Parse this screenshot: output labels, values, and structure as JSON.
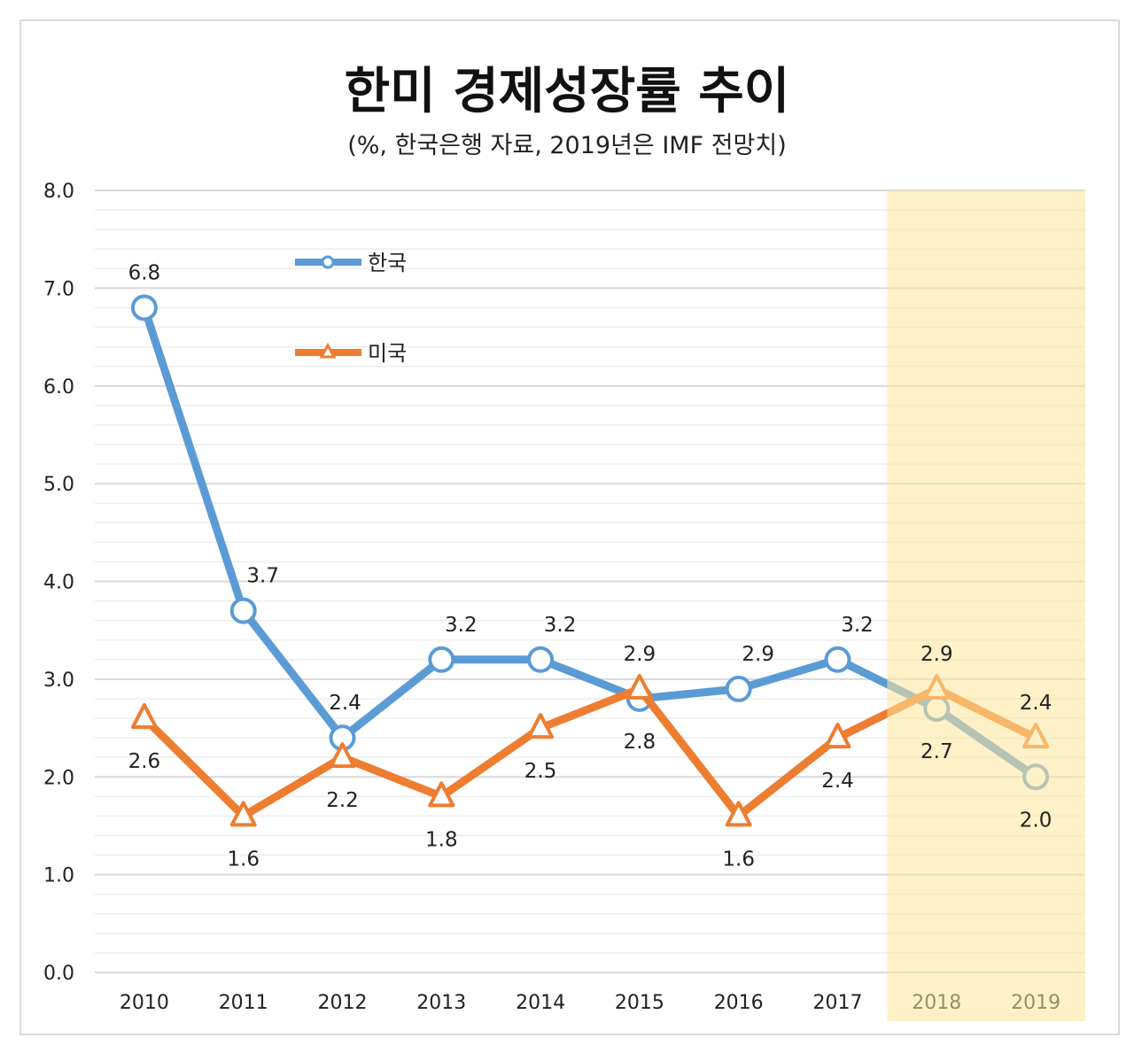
{
  "chart_data": {
    "type": "line",
    "title": "한미 경제성장률 추이",
    "subtitle": "(%, 한국은행 자료, 2019년은 IMF 전망치)",
    "categories": [
      "2010",
      "2011",
      "2012",
      "2013",
      "2014",
      "2015",
      "2016",
      "2017",
      "2018",
      "2019"
    ],
    "ylim": [
      0,
      8
    ],
    "yticks": [
      "0.0",
      "1.0",
      "2.0",
      "3.0",
      "4.0",
      "5.0",
      "6.0",
      "7.0",
      "8.0"
    ],
    "grid": true,
    "legend_position": "top-left",
    "highlight_categories": [
      "2018",
      "2019"
    ],
    "series": [
      {
        "name": "한국",
        "color": "#5b9bd5",
        "marker": "circle",
        "values": [
          6.8,
          3.7,
          2.4,
          3.2,
          3.2,
          2.8,
          2.9,
          3.2,
          2.7,
          2.0
        ]
      },
      {
        "name": "미국",
        "color": "#ed7d31",
        "marker": "triangle",
        "values": [
          2.6,
          1.6,
          2.2,
          1.8,
          2.5,
          2.9,
          1.6,
          2.4,
          2.9,
          2.4
        ]
      }
    ],
    "colors": {
      "highlight": "#ffe699"
    }
  }
}
